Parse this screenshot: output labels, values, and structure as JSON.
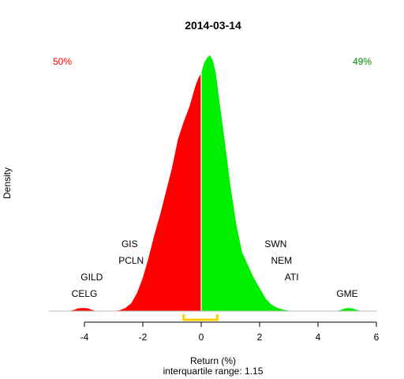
{
  "chart_data": {
    "type": "area",
    "title": "2014-03-14",
    "xlabel": "Return (%)",
    "subtitle": "interquartile range: 1.15",
    "ylabel": "Density",
    "xlim": [
      -5.3,
      6.1
    ],
    "ylim": [
      0,
      1
    ],
    "x_ticks": [
      "-4",
      "-2",
      "0",
      "2",
      "4",
      "6"
    ],
    "x_tick_values": [
      -4,
      -2,
      0,
      2,
      4,
      6
    ],
    "grid": false,
    "split_at": 0,
    "negative_share_label": "50%",
    "positive_share_label": "49%",
    "negative_color": "#ff0000",
    "positive_color": "#00ee00",
    "iqr_color": "#ffcc00",
    "iqr_range": [
      -0.6,
      0.55
    ],
    "density_curve": {
      "x": [
        -4.5,
        -4.35,
        -4.2,
        -4.05,
        -3.9,
        -3.75,
        -3.6,
        -3.45,
        -3.3,
        -3.15,
        -3.0,
        -2.8,
        -2.6,
        -2.4,
        -2.2,
        -2.0,
        -1.8,
        -1.6,
        -1.4,
        -1.2,
        -1.0,
        -0.8,
        -0.6,
        -0.4,
        -0.2,
        -0.1,
        0.0,
        0.1,
        0.2,
        0.3,
        0.4,
        0.5,
        0.6,
        0.8,
        1.0,
        1.2,
        1.4,
        1.6,
        1.8,
        2.0,
        2.2,
        2.4,
        2.6,
        2.8,
        3.0,
        3.2,
        3.4,
        3.6,
        3.8,
        4.0,
        4.2,
        4.4,
        4.6,
        4.75,
        4.9,
        5.05,
        5.2,
        5.35,
        5.5
      ],
      "y": [
        0.0,
        0.005,
        0.011,
        0.012,
        0.011,
        0.005,
        0.0,
        0.0,
        0.0,
        0.0,
        0.0,
        0.003,
        0.012,
        0.03,
        0.07,
        0.13,
        0.21,
        0.3,
        0.38,
        0.47,
        0.56,
        0.67,
        0.74,
        0.8,
        0.88,
        0.91,
        0.93,
        0.97,
        0.99,
        1.0,
        0.98,
        0.93,
        0.84,
        0.67,
        0.49,
        0.34,
        0.23,
        0.18,
        0.13,
        0.09,
        0.05,
        0.026,
        0.013,
        0.006,
        0.002,
        0.0,
        0.0,
        0.0,
        0.0,
        0.0,
        0.0,
        0.0,
        0.0,
        0.003,
        0.01,
        0.012,
        0.01,
        0.004,
        0.0
      ]
    },
    "annotations": [
      {
        "text": "CELG",
        "x": -4.0,
        "y": 0.055
      },
      {
        "text": "GILD",
        "x": -3.75,
        "y": 0.12
      },
      {
        "text": "PCLN",
        "x": -2.4,
        "y": 0.185
      },
      {
        "text": "GIS",
        "x": -2.45,
        "y": 0.25
      },
      {
        "text": "SWN",
        "x": 2.55,
        "y": 0.25
      },
      {
        "text": "NEM",
        "x": 2.75,
        "y": 0.185
      },
      {
        "text": "ATI",
        "x": 3.1,
        "y": 0.12
      },
      {
        "text": "GME",
        "x": 5.0,
        "y": 0.055
      }
    ]
  }
}
